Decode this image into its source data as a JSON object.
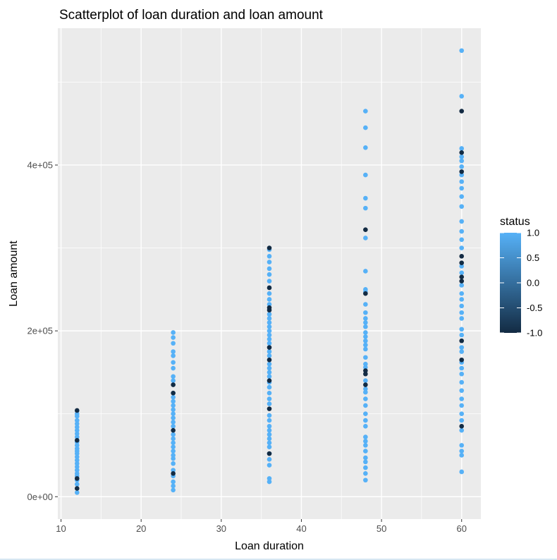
{
  "chart_data": {
    "type": "scatter",
    "title": "Scatterplot of loan duration and loan amount",
    "xlabel": "Loan duration",
    "ylabel": "Loan amount",
    "xlim": [
      9.6,
      62.4
    ],
    "ylim": [
      -27000,
      565000
    ],
    "x_ticks": [
      10,
      20,
      30,
      40,
      50,
      60
    ],
    "x_tick_labels": [
      "10",
      "20",
      "30",
      "40",
      "50",
      "60"
    ],
    "y_ticks": [
      0,
      200000,
      400000
    ],
    "y_tick_labels": [
      "0e+00",
      "2e+05",
      "4e+05"
    ],
    "grid": true,
    "legend": {
      "title": "status",
      "position": "right",
      "type": "colorbar",
      "range": [
        -1.0,
        1.0
      ],
      "tick_labels": [
        "1.0",
        "0.5",
        "0.0",
        "-0.5",
        "-1.0"
      ],
      "low_color": "#132B43",
      "high_color": "#56B1F7"
    },
    "colors": {
      "panel_background": "#EBEBEB",
      "grid": "#FFFFFF"
    },
    "series": [
      {
        "status": 1,
        "color": "#56B1F7",
        "points": [
          [
            12,
            5000
          ],
          [
            12,
            15000
          ],
          [
            12,
            20000
          ],
          [
            12,
            25000
          ],
          [
            12,
            28000
          ],
          [
            12,
            32000
          ],
          [
            12,
            36000
          ],
          [
            12,
            40000
          ],
          [
            12,
            44000
          ],
          [
            12,
            48000
          ],
          [
            12,
            52000
          ],
          [
            12,
            55000
          ],
          [
            12,
            58000
          ],
          [
            12,
            62000
          ],
          [
            12,
            66000
          ],
          [
            12,
            72000
          ],
          [
            12,
            76000
          ],
          [
            12,
            80000
          ],
          [
            12,
            84000
          ],
          [
            12,
            88000
          ],
          [
            12,
            92000
          ],
          [
            12,
            97000
          ],
          [
            12,
            100000
          ],
          [
            24,
            8000
          ],
          [
            24,
            13000
          ],
          [
            24,
            18000
          ],
          [
            24,
            25000
          ],
          [
            24,
            32000
          ],
          [
            24,
            40000
          ],
          [
            24,
            46000
          ],
          [
            24,
            50000
          ],
          [
            24,
            55000
          ],
          [
            24,
            60000
          ],
          [
            24,
            65000
          ],
          [
            24,
            70000
          ],
          [
            24,
            75000
          ],
          [
            24,
            85000
          ],
          [
            24,
            90000
          ],
          [
            24,
            95000
          ],
          [
            24,
            100000
          ],
          [
            24,
            105000
          ],
          [
            24,
            110000
          ],
          [
            24,
            115000
          ],
          [
            24,
            120000
          ],
          [
            24,
            125000
          ],
          [
            24,
            140000
          ],
          [
            24,
            145000
          ],
          [
            24,
            155000
          ],
          [
            24,
            162000
          ],
          [
            24,
            170000
          ],
          [
            24,
            175000
          ],
          [
            24,
            185000
          ],
          [
            24,
            192000
          ],
          [
            24,
            198000
          ],
          [
            36,
            18000
          ],
          [
            36,
            22000
          ],
          [
            36,
            38000
          ],
          [
            36,
            45000
          ],
          [
            36,
            52000
          ],
          [
            36,
            60000
          ],
          [
            36,
            65000
          ],
          [
            36,
            70000
          ],
          [
            36,
            75000
          ],
          [
            36,
            80000
          ],
          [
            36,
            85000
          ],
          [
            36,
            92000
          ],
          [
            36,
            98000
          ],
          [
            36,
            112000
          ],
          [
            36,
            118000
          ],
          [
            36,
            125000
          ],
          [
            36,
            132000
          ],
          [
            36,
            138000
          ],
          [
            36,
            145000
          ],
          [
            36,
            150000
          ],
          [
            36,
            155000
          ],
          [
            36,
            160000
          ],
          [
            36,
            170000
          ],
          [
            36,
            175000
          ],
          [
            36,
            185000
          ],
          [
            36,
            190000
          ],
          [
            36,
            195000
          ],
          [
            36,
            200000
          ],
          [
            36,
            205000
          ],
          [
            36,
            210000
          ],
          [
            36,
            215000
          ],
          [
            36,
            220000
          ],
          [
            36,
            232000
          ],
          [
            36,
            238000
          ],
          [
            36,
            245000
          ],
          [
            36,
            260000
          ],
          [
            36,
            268000
          ],
          [
            36,
            275000
          ],
          [
            36,
            283000
          ],
          [
            36,
            290000
          ],
          [
            36,
            298000
          ],
          [
            48,
            20000
          ],
          [
            48,
            28000
          ],
          [
            48,
            35000
          ],
          [
            48,
            42000
          ],
          [
            48,
            47000
          ],
          [
            48,
            55000
          ],
          [
            48,
            62000
          ],
          [
            48,
            67000
          ],
          [
            48,
            72000
          ],
          [
            48,
            85000
          ],
          [
            48,
            92000
          ],
          [
            48,
            100000
          ],
          [
            48,
            110000
          ],
          [
            48,
            118000
          ],
          [
            48,
            126000
          ],
          [
            48,
            130000
          ],
          [
            48,
            140000
          ],
          [
            48,
            156000
          ],
          [
            48,
            160000
          ],
          [
            48,
            168000
          ],
          [
            48,
            178000
          ],
          [
            48,
            183000
          ],
          [
            48,
            188000
          ],
          [
            48,
            193000
          ],
          [
            48,
            198000
          ],
          [
            48,
            205000
          ],
          [
            48,
            210000
          ],
          [
            48,
            215000
          ],
          [
            48,
            222000
          ],
          [
            48,
            232000
          ],
          [
            48,
            247000
          ],
          [
            48,
            250000
          ],
          [
            48,
            272000
          ],
          [
            48,
            312000
          ],
          [
            48,
            348000
          ],
          [
            48,
            360000
          ],
          [
            48,
            388000
          ],
          [
            48,
            421000
          ],
          [
            48,
            445000
          ],
          [
            48,
            465000
          ],
          [
            60,
            30000
          ],
          [
            60,
            50000
          ],
          [
            60,
            55000
          ],
          [
            60,
            62000
          ],
          [
            60,
            80000
          ],
          [
            60,
            92000
          ],
          [
            60,
            100000
          ],
          [
            60,
            110000
          ],
          [
            60,
            118000
          ],
          [
            60,
            128000
          ],
          [
            60,
            138000
          ],
          [
            60,
            148000
          ],
          [
            60,
            155000
          ],
          [
            60,
            162000
          ],
          [
            60,
            175000
          ],
          [
            60,
            180000
          ],
          [
            60,
            195000
          ],
          [
            60,
            202000
          ],
          [
            60,
            215000
          ],
          [
            60,
            222000
          ],
          [
            60,
            230000
          ],
          [
            60,
            238000
          ],
          [
            60,
            245000
          ],
          [
            60,
            255000
          ],
          [
            60,
            270000
          ],
          [
            60,
            278000
          ],
          [
            60,
            300000
          ],
          [
            60,
            310000
          ],
          [
            60,
            320000
          ],
          [
            60,
            332000
          ],
          [
            60,
            350000
          ],
          [
            60,
            362000
          ],
          [
            60,
            372000
          ],
          [
            60,
            380000
          ],
          [
            60,
            388000
          ],
          [
            60,
            398000
          ],
          [
            60,
            405000
          ],
          [
            60,
            410000
          ],
          [
            60,
            420000
          ],
          [
            60,
            483000
          ],
          [
            60,
            538000
          ]
        ]
      },
      {
        "status": -1,
        "color": "#132B43",
        "points": [
          [
            12,
            10000
          ],
          [
            12,
            22000
          ],
          [
            12,
            68000
          ],
          [
            12,
            104000
          ],
          [
            24,
            28000
          ],
          [
            24,
            80000
          ],
          [
            24,
            125000
          ],
          [
            24,
            135000
          ],
          [
            36,
            52000
          ],
          [
            36,
            106000
          ],
          [
            36,
            140000
          ],
          [
            36,
            165000
          ],
          [
            36,
            180000
          ],
          [
            36,
            225000
          ],
          [
            36,
            228000
          ],
          [
            36,
            252000
          ],
          [
            36,
            300000
          ],
          [
            48,
            135000
          ],
          [
            48,
            148000
          ],
          [
            48,
            152000
          ],
          [
            48,
            245000
          ],
          [
            48,
            322000
          ],
          [
            60,
            85000
          ],
          [
            60,
            165000
          ],
          [
            60,
            188000
          ],
          [
            60,
            260000
          ],
          [
            60,
            265000
          ],
          [
            60,
            282000
          ],
          [
            60,
            290000
          ],
          [
            60,
            392000
          ],
          [
            60,
            415000
          ],
          [
            60,
            465000
          ]
        ]
      }
    ]
  }
}
